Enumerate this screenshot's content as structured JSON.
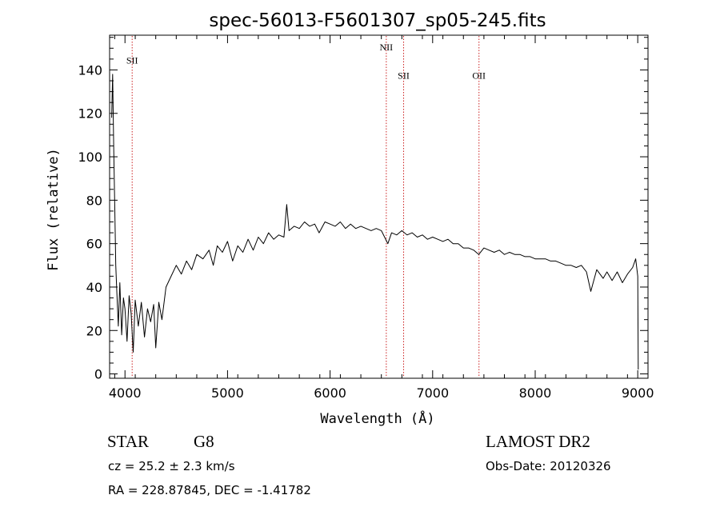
{
  "chart_data": {
    "type": "line",
    "title": "spec-56013-F5601307_sp05-245.fits",
    "xlabel": "Wavelength (Å)",
    "ylabel": "Flux (relative)",
    "xlim": [
      3850,
      9100
    ],
    "ylim": [
      -2,
      156
    ],
    "x_ticks": [
      4000,
      5000,
      6000,
      7000,
      8000,
      9000
    ],
    "y_ticks": [
      0,
      20,
      40,
      60,
      80,
      100,
      120,
      140
    ],
    "grid": false,
    "legend": "none",
    "line_color": "#000000",
    "line_marker_color": "#cc2222",
    "lines": [
      {
        "label": "SII",
        "wavelength": 4070,
        "label_flux": 143
      },
      {
        "label": "NII",
        "wavelength": 6548,
        "label_flux": 149
      },
      {
        "label": "SII",
        "wavelength": 6717,
        "label_flux": 136
      },
      {
        "label": "OII",
        "wavelength": 7452,
        "label_flux": 136
      }
    ],
    "series": [
      {
        "x": [
          3870,
          3880,
          3890,
          3900,
          3910,
          3920,
          3935,
          3950,
          3968,
          3985,
          4000,
          4020,
          4040,
          4060,
          4080,
          4100,
          4130,
          4160,
          4190,
          4220,
          4250,
          4280,
          4300,
          4330,
          4360,
          4400,
          4450,
          4500,
          4550,
          4600,
          4650,
          4700,
          4760,
          4820,
          4861,
          4900,
          4950,
          5000,
          5050,
          5100,
          5150,
          5200,
          5250,
          5300,
          5350,
          5400,
          5450,
          5500,
          5550,
          5577,
          5600,
          5650,
          5700,
          5750,
          5800,
          5850,
          5893,
          5950,
          6000,
          6050,
          6100,
          6150,
          6200,
          6250,
          6300,
          6350,
          6400,
          6450,
          6500,
          6563,
          6600,
          6650,
          6700,
          6750,
          6800,
          6850,
          6900,
          6950,
          7000,
          7050,
          7100,
          7150,
          7200,
          7250,
          7300,
          7350,
          7400,
          7450,
          7500,
          7550,
          7600,
          7650,
          7700,
          7750,
          7800,
          7850,
          7900,
          7950,
          8000,
          8050,
          8100,
          8150,
          8200,
          8250,
          8300,
          8350,
          8400,
          8450,
          8500,
          8542,
          8600,
          8662,
          8700,
          8750,
          8800,
          8850,
          8900,
          8950,
          8980,
          9000,
          9005
        ],
        "values": [
          118,
          138,
          105,
          78,
          50,
          38,
          22,
          42,
          18,
          35,
          30,
          15,
          36,
          28,
          10,
          34,
          22,
          33,
          17,
          30,
          24,
          32,
          12,
          33,
          25,
          40,
          45,
          50,
          46,
          52,
          48,
          55,
          53,
          57,
          50,
          59,
          56,
          61,
          52,
          59,
          56,
          62,
          57,
          63,
          60,
          65,
          62,
          64,
          63,
          78,
          66,
          68,
          67,
          70,
          68,
          69,
          65,
          70,
          69,
          68,
          70,
          67,
          69,
          67,
          68,
          67,
          66,
          67,
          66,
          60,
          65,
          64,
          66,
          64,
          65,
          63,
          64,
          62,
          63,
          62,
          61,
          62,
          60,
          60,
          58,
          58,
          57,
          55,
          58,
          57,
          56,
          57,
          55,
          56,
          55,
          55,
          54,
          54,
          53,
          53,
          53,
          52,
          52,
          51,
          50,
          50,
          49,
          50,
          47,
          38,
          48,
          44,
          47,
          43,
          47,
          42,
          46,
          49,
          53,
          45,
          2
        ]
      }
    ]
  },
  "info": {
    "object_class": "STAR",
    "subclass": "G8",
    "survey": "LAMOST DR2",
    "redshift": "cz = 25.2 ± 2.3 km/s",
    "obs_date": "Obs-Date: 20120326",
    "coords": "RA = 228.87845, DEC =  -1.41782"
  }
}
